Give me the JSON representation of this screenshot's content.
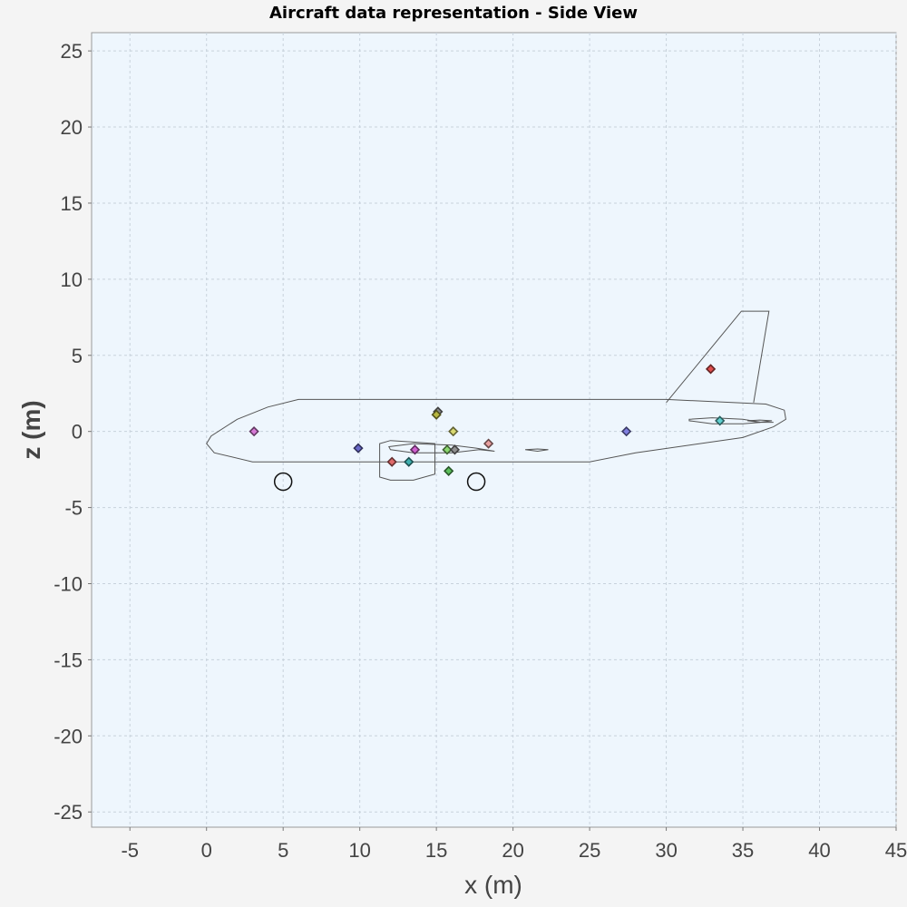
{
  "chart_data": {
    "type": "scatter",
    "title": "Aircraft data representation - Side View",
    "xlabel": "x (m)",
    "ylabel": "z (m)",
    "xlim": [
      -7.5,
      45
    ],
    "ylim": [
      -26,
      26.2
    ],
    "xticks": [
      -5,
      0,
      5,
      10,
      15,
      20,
      25,
      30,
      35,
      40,
      45
    ],
    "yticks": [
      25,
      20,
      15,
      10,
      5,
      0,
      -5,
      -10,
      -15,
      -20,
      -25
    ],
    "grid": true,
    "outlines": [
      {
        "name": "fuselage",
        "closed": true,
        "points": [
          [
            6,
            2.1
          ],
          [
            30,
            2.1
          ],
          [
            36.5,
            1.8
          ],
          [
            37.7,
            1.4
          ],
          [
            37.8,
            0.8
          ],
          [
            37,
            0.3
          ],
          [
            35,
            -0.4
          ],
          [
            28,
            -1.4
          ],
          [
            25,
            -2.0
          ],
          [
            10,
            -2.0
          ],
          [
            3,
            -2.0
          ],
          [
            0.5,
            -1.4
          ],
          [
            0,
            -0.8
          ],
          [
            0.3,
            -0.3
          ],
          [
            2,
            0.8
          ],
          [
            4,
            1.6
          ]
        ]
      },
      {
        "name": "vertical-tail",
        "closed": false,
        "points": [
          [
            30,
            1.9
          ],
          [
            34.9,
            7.9
          ],
          [
            36.7,
            7.9
          ],
          [
            35.7,
            1.9
          ]
        ]
      },
      {
        "name": "horizontal-tail",
        "closed": true,
        "points": [
          [
            31.5,
            0.8
          ],
          [
            33,
            0.9
          ],
          [
            35,
            0.8
          ],
          [
            36.2,
            0.6
          ],
          [
            37,
            0.6
          ],
          [
            36.2,
            0.6
          ],
          [
            35,
            0.5
          ],
          [
            33,
            0.5
          ],
          [
            31.5,
            0.7
          ]
        ]
      },
      {
        "name": "horizontal-tail-tip",
        "closed": true,
        "points": [
          [
            35.3,
            0.7
          ],
          [
            36.1,
            0.75
          ],
          [
            36.9,
            0.7
          ],
          [
            36.1,
            0.6
          ]
        ]
      },
      {
        "name": "wing",
        "closed": true,
        "points": [
          [
            11.9,
            -1.0
          ],
          [
            13.5,
            -0.8
          ],
          [
            16,
            -0.9
          ],
          [
            17.6,
            -1.1
          ],
          [
            18.8,
            -1.3
          ],
          [
            17.8,
            -1.2
          ],
          [
            16,
            -1.4
          ],
          [
            13.5,
            -1.4
          ],
          [
            12,
            -1.2
          ]
        ]
      },
      {
        "name": "canard",
        "closed": true,
        "points": [
          [
            20.8,
            -1.2
          ],
          [
            21.6,
            -1.15
          ],
          [
            22.3,
            -1.2
          ],
          [
            21.6,
            -1.3
          ]
        ]
      },
      {
        "name": "engine",
        "closed": true,
        "points": [
          [
            11.3,
            -0.8
          ],
          [
            12,
            -0.6
          ],
          [
            13.5,
            -0.7
          ],
          [
            14.9,
            -0.8
          ],
          [
            14.9,
            -2.8
          ],
          [
            13.5,
            -3.2
          ],
          [
            12,
            -3.2
          ],
          [
            11.3,
            -3.0
          ]
        ]
      }
    ],
    "wheels": [
      {
        "name": "front-wheel",
        "x": 5,
        "z": -3.3
      },
      {
        "name": "rear-wheel",
        "x": 17.6,
        "z": -3.3
      }
    ],
    "points": [
      {
        "x": 3.1,
        "z": 0.0,
        "color": "#d67ad6"
      },
      {
        "x": 9.9,
        "z": -1.1,
        "color": "#6868c8"
      },
      {
        "x": 12.1,
        "z": -2.0,
        "color": "#e06a6a"
      },
      {
        "x": 13.2,
        "z": -2.0,
        "color": "#40b0b0"
      },
      {
        "x": 13.6,
        "z": -1.2,
        "color": "#d060d0"
      },
      {
        "x": 15.1,
        "z": 1.3,
        "color": "#8a8a8a"
      },
      {
        "x": 15.0,
        "z": 1.1,
        "color": "#b8b840"
      },
      {
        "x": 16.1,
        "z": 0.0,
        "color": "#d8d870"
      },
      {
        "x": 15.7,
        "z": -1.2,
        "color": "#8bd86f"
      },
      {
        "x": 16.2,
        "z": -1.2,
        "color": "#909090"
      },
      {
        "x": 15.8,
        "z": -2.6,
        "color": "#5cc05c"
      },
      {
        "x": 18.4,
        "z": -0.8,
        "color": "#e8a0a0"
      },
      {
        "x": 27.4,
        "z": 0.0,
        "color": "#8080e0"
      },
      {
        "x": 32.9,
        "z": 4.1,
        "color": "#e05050"
      },
      {
        "x": 33.5,
        "z": 0.7,
        "color": "#60d0d0"
      }
    ]
  }
}
